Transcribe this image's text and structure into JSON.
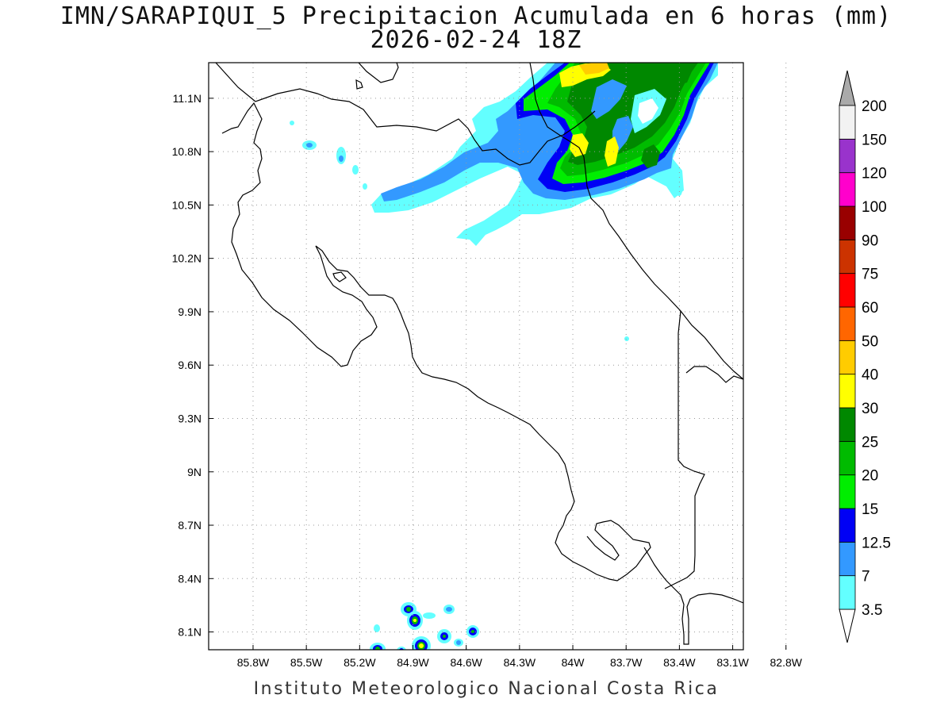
{
  "title": {
    "line1": "IMN/SARAPIQUI_5 Precipitacion Acumulada en 6 horas (mm)",
    "line2": "2026-02-24 18Z"
  },
  "footer": "Instituto Meteorologico Nacional Costa Rica",
  "map": {
    "lon_range": [
      -86.05,
      -83.04
    ],
    "lat_range": [
      8.0,
      11.3
    ],
    "lon_ticks": [
      -85.8,
      -85.5,
      -85.2,
      -84.9,
      -84.6,
      -84.3,
      -84.0,
      -83.7,
      -83.4,
      -83.1,
      -82.8
    ],
    "lon_tick_labels": [
      "85.8W",
      "85.5W",
      "85.2W",
      "84.9W",
      "84.6W",
      "84.3W",
      "84W",
      "83.7W",
      "83.4W",
      "83.1W",
      "82.8W"
    ],
    "lat_ticks": [
      8.1,
      8.4,
      8.7,
      9.0,
      9.3,
      9.6,
      9.9,
      10.2,
      10.5,
      10.8,
      11.1
    ],
    "lat_tick_labels": [
      "8.1N",
      "8.4N",
      "8.7N",
      "9N",
      "9.3N",
      "9.6N",
      "9.9N",
      "10.2N",
      "10.5N",
      "10.8N",
      "11.1N"
    ],
    "grid": true
  },
  "colorbar": {
    "labels": [
      "3.5",
      "7",
      "12.5",
      "15",
      "20",
      "25",
      "30",
      "40",
      "50",
      "60",
      "75",
      "90",
      "100",
      "120",
      "150",
      "200"
    ],
    "colors": [
      "#63ffff",
      "#3399ff",
      "#0000f5",
      "#00ee00",
      "#00bb00",
      "#008800",
      "#ffff00",
      "#ffcc00",
      "#ff6600",
      "#ff0000",
      "#cc3300",
      "#990000",
      "#ff00cc",
      "#9933cc",
      "#f2f2f2"
    ],
    "below_color": "#ffffff",
    "above_color": "#aaaaaa"
  }
}
